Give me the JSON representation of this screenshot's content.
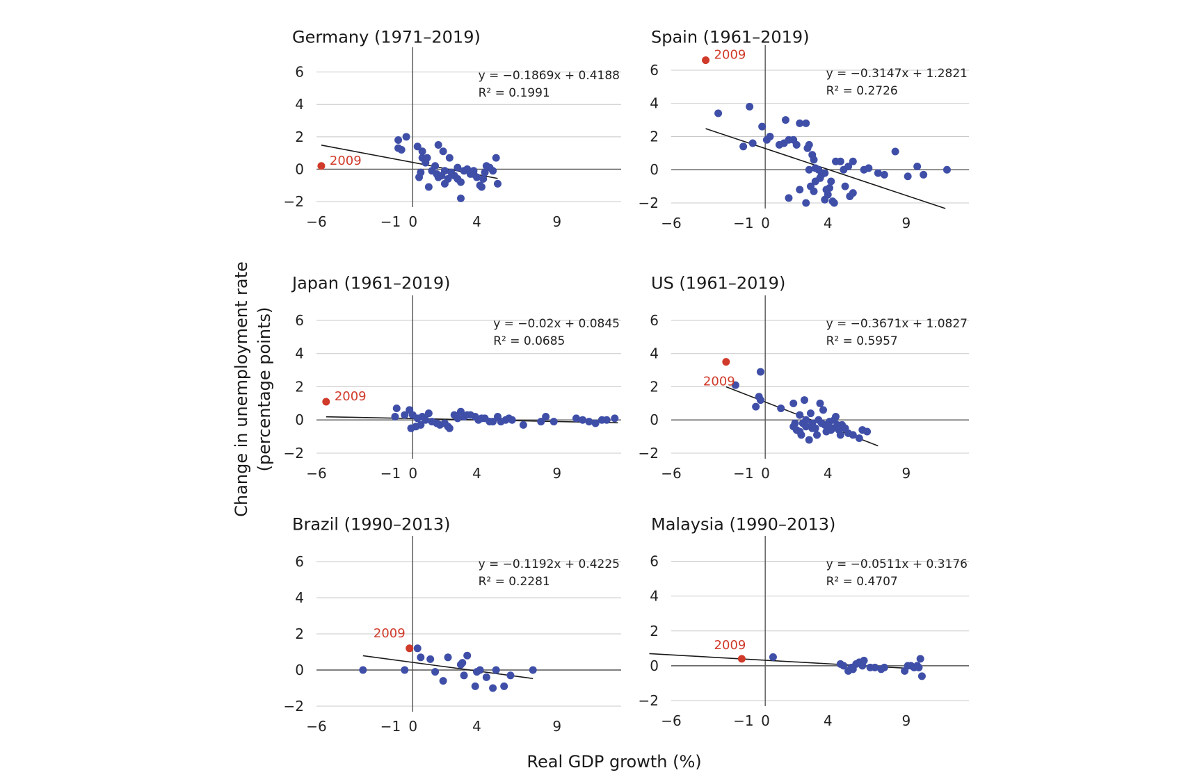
{
  "figure": {
    "ylabel_line1": "Change in unemployment rate",
    "ylabel_line2": "(percentage points)",
    "xlabel": "Real GDP growth (%)"
  },
  "colors": {
    "points": "#3f4fa8",
    "highlight": "#d03a2a",
    "grid": "#c8c8c8",
    "axis": "#555555",
    "fit": "#1a1a1a"
  },
  "chart_data": [
    {
      "type": "scatter",
      "title": "Germany (1971–2019)",
      "xticks": [
        -6,
        -1,
        0,
        4,
        9
      ],
      "yticks": [
        -2,
        0,
        2,
        4,
        6
      ],
      "xlim": [
        -6,
        13
      ],
      "ylim": [
        -2,
        6.5
      ],
      "equation": "y = −0.1869x + 0.4188",
      "r2": "R² = 0.1991",
      "fit": {
        "slope": -0.1869,
        "intercept": 0.4188,
        "x_range": [
          -5.7,
          5.3
        ]
      },
      "highlight": {
        "label": "2009",
        "x": -5.7,
        "y": 0.2
      },
      "points": [
        [
          -0.9,
          1.8
        ],
        [
          -0.4,
          2.0
        ],
        [
          -0.9,
          1.3
        ],
        [
          -0.7,
          1.2
        ],
        [
          0.3,
          1.4
        ],
        [
          0.6,
          1.1
        ],
        [
          1.6,
          1.5
        ],
        [
          1.9,
          1.1
        ],
        [
          2.3,
          0.7
        ],
        [
          0.6,
          0.7
        ],
        [
          0.9,
          0.7
        ],
        [
          0.5,
          -0.2
        ],
        [
          0.4,
          -0.5
        ],
        [
          1.2,
          -0.1
        ],
        [
          1.5,
          -0.3
        ],
        [
          1.8,
          -0.4
        ],
        [
          2.0,
          -0.1
        ],
        [
          2.2,
          -0.6
        ],
        [
          2.4,
          -0.2
        ],
        [
          2.6,
          -0.4
        ],
        [
          2.8,
          -0.6
        ],
        [
          3.0,
          -0.8
        ],
        [
          3.2,
          -0.1
        ],
        [
          3.4,
          0.0
        ],
        [
          3.6,
          -0.3
        ],
        [
          3.8,
          -0.1
        ],
        [
          4.0,
          -0.5
        ],
        [
          4.2,
          -1.0
        ],
        [
          4.4,
          -0.6
        ],
        [
          4.6,
          0.2
        ],
        [
          4.8,
          0.1
        ],
        [
          5.0,
          -0.1
        ],
        [
          5.2,
          0.7
        ],
        [
          5.3,
          -0.9
        ],
        [
          1.0,
          -1.1
        ],
        [
          3.0,
          -1.8
        ],
        [
          2.0,
          -0.9
        ],
        [
          3.8,
          -0.3
        ],
        [
          4.5,
          -0.2
        ],
        [
          1.4,
          0.2
        ],
        [
          0.8,
          0.4
        ],
        [
          2.8,
          0.1
        ],
        [
          4.3,
          -1.1
        ],
        [
          1.6,
          -0.5
        ]
      ]
    },
    {
      "type": "scatter",
      "title": "Spain (1961–2019)",
      "xticks": [
        -6,
        -1,
        0,
        4,
        9
      ],
      "yticks": [
        -2,
        0,
        2,
        4,
        6
      ],
      "xlim": [
        -6,
        13
      ],
      "ylim": [
        -2,
        6.5
      ],
      "equation": "y = −0.3147x + 1.2821",
      "r2": "R² = 0.2726",
      "fit": {
        "slope": -0.3147,
        "intercept": 1.2821,
        "x_range": [
          -3.8,
          11.5
        ]
      },
      "highlight": {
        "label": "2009",
        "x": -3.8,
        "y": 6.6
      },
      "points": [
        [
          -3.0,
          3.4
        ],
        [
          -1.0,
          3.8
        ],
        [
          -1.4,
          1.4
        ],
        [
          -0.8,
          1.6
        ],
        [
          -0.2,
          2.6
        ],
        [
          0.1,
          1.8
        ],
        [
          0.3,
          2.0
        ],
        [
          0.9,
          1.5
        ],
        [
          1.2,
          1.6
        ],
        [
          1.3,
          3.0
        ],
        [
          1.5,
          1.8
        ],
        [
          1.8,
          1.8
        ],
        [
          2.0,
          1.5
        ],
        [
          2.2,
          2.8
        ],
        [
          2.6,
          2.8
        ],
        [
          2.7,
          1.3
        ],
        [
          2.8,
          1.5
        ],
        [
          3.0,
          0.9
        ],
        [
          3.1,
          0.6
        ],
        [
          2.8,
          0.0
        ],
        [
          3.2,
          0.1
        ],
        [
          3.4,
          0.0
        ],
        [
          3.6,
          -0.3
        ],
        [
          3.5,
          -0.5
        ],
        [
          3.8,
          -0.2
        ],
        [
          4.2,
          -0.7
        ],
        [
          4.5,
          0.5
        ],
        [
          4.8,
          0.5
        ],
        [
          5.0,
          0.0
        ],
        [
          5.3,
          0.2
        ],
        [
          5.6,
          0.5
        ],
        [
          6.3,
          0.0
        ],
        [
          6.6,
          0.1
        ],
        [
          7.2,
          -0.2
        ],
        [
          7.6,
          -0.3
        ],
        [
          8.3,
          1.1
        ],
        [
          9.1,
          -0.4
        ],
        [
          9.7,
          0.2
        ],
        [
          10.1,
          -0.3
        ],
        [
          11.6,
          0.0
        ],
        [
          1.5,
          -1.7
        ],
        [
          2.2,
          -1.2
        ],
        [
          2.6,
          -2.0
        ],
        [
          2.9,
          -1.0
        ],
        [
          3.1,
          -1.3
        ],
        [
          3.5,
          -0.5
        ],
        [
          3.9,
          -1.2
        ],
        [
          4.0,
          -1.5
        ],
        [
          4.3,
          -1.9
        ],
        [
          3.8,
          -1.8
        ],
        [
          4.4,
          -2.0
        ],
        [
          5.1,
          -1.0
        ],
        [
          5.4,
          -1.6
        ],
        [
          5.6,
          -1.4
        ],
        [
          4.1,
          -1.1
        ],
        [
          3.2,
          -0.7
        ]
      ]
    },
    {
      "type": "scatter",
      "title": "Japan (1961–2019)",
      "xticks": [
        -6,
        -1,
        0,
        4,
        9
      ],
      "yticks": [
        -2,
        0,
        2,
        4,
        6
      ],
      "xlim": [
        -6,
        13
      ],
      "ylim": [
        -2,
        6.5
      ],
      "equation": "y = −0.02x + 0.0845",
      "r2": "R² = 0.0685",
      "fit": {
        "slope": -0.02,
        "intercept": 0.0845,
        "x_range": [
          -5.4,
          12.8
        ]
      },
      "highlight": {
        "label": "2009",
        "x": -5.4,
        "y": 1.1
      },
      "points": [
        [
          -1.0,
          0.7
        ],
        [
          -1.1,
          0.2
        ],
        [
          -0.5,
          0.3
        ],
        [
          -0.2,
          0.6
        ],
        [
          0.0,
          0.3
        ],
        [
          0.3,
          0.1
        ],
        [
          0.5,
          -0.3
        ],
        [
          0.6,
          0.2
        ],
        [
          0.8,
          0.0
        ],
        [
          1.0,
          0.4
        ],
        [
          0.2,
          -0.4
        ],
        [
          -0.1,
          -0.5
        ],
        [
          1.2,
          -0.1
        ],
        [
          1.5,
          -0.2
        ],
        [
          1.7,
          -0.3
        ],
        [
          2.0,
          -0.2
        ],
        [
          2.2,
          -0.4
        ],
        [
          2.3,
          -0.5
        ],
        [
          2.6,
          0.3
        ],
        [
          2.8,
          0.1
        ],
        [
          3.0,
          0.5
        ],
        [
          3.2,
          0.2
        ],
        [
          3.4,
          0.3
        ],
        [
          3.6,
          0.3
        ],
        [
          3.9,
          0.2
        ],
        [
          4.1,
          0.0
        ],
        [
          4.3,
          0.1
        ],
        [
          4.5,
          0.1
        ],
        [
          4.8,
          -0.1
        ],
        [
          5.0,
          -0.1
        ],
        [
          5.3,
          0.2
        ],
        [
          5.5,
          -0.1
        ],
        [
          5.8,
          0.0
        ],
        [
          6.0,
          0.1
        ],
        [
          6.9,
          -0.3
        ],
        [
          8.0,
          -0.1
        ],
        [
          8.3,
          0.2
        ],
        [
          8.8,
          -0.1
        ],
        [
          10.2,
          0.1
        ],
        [
          10.6,
          0.0
        ],
        [
          11.0,
          -0.1
        ],
        [
          11.4,
          -0.2
        ],
        [
          11.8,
          0.0
        ],
        [
          12.1,
          0.0
        ],
        [
          12.6,
          0.1
        ],
        [
          6.2,
          0.0
        ]
      ]
    },
    {
      "type": "scatter",
      "title": "US (1961–2019)",
      "xticks": [
        -6,
        -1,
        0,
        4,
        9
      ],
      "yticks": [
        -2,
        0,
        2,
        4,
        6
      ],
      "xlim": [
        -6,
        13
      ],
      "ylim": [
        -2,
        6.5
      ],
      "equation": "y = −0.3671x + 1.0827",
      "r2": "R² = 0.5957",
      "fit": {
        "slope": -0.3671,
        "intercept": 1.0827,
        "x_range": [
          -2.5,
          7.2
        ]
      },
      "highlight": {
        "label": "2009",
        "x": -2.5,
        "y": 3.5
      },
      "points": [
        [
          -1.9,
          2.1
        ],
        [
          -0.3,
          2.9
        ],
        [
          -0.4,
          1.4
        ],
        [
          -0.3,
          1.2
        ],
        [
          -0.6,
          0.8
        ],
        [
          1.0,
          0.7
        ],
        [
          1.8,
          1.0
        ],
        [
          2.2,
          0.3
        ],
        [
          2.5,
          1.2
        ],
        [
          1.8,
          -0.4
        ],
        [
          2.0,
          -0.6
        ],
        [
          2.3,
          -0.9
        ],
        [
          2.4,
          -0.2
        ],
        [
          2.6,
          0.0
        ],
        [
          2.8,
          -1.2
        ],
        [
          2.9,
          0.4
        ],
        [
          3.0,
          -0.2
        ],
        [
          3.2,
          -0.5
        ],
        [
          3.3,
          -0.9
        ],
        [
          3.4,
          0.0
        ],
        [
          3.5,
          1.0
        ],
        [
          3.7,
          0.6
        ],
        [
          3.8,
          -0.3
        ],
        [
          3.9,
          -0.7
        ],
        [
          4.0,
          -0.4
        ],
        [
          4.1,
          -0.1
        ],
        [
          4.2,
          -0.6
        ],
        [
          4.3,
          -0.5
        ],
        [
          4.4,
          0.0
        ],
        [
          4.5,
          0.2
        ],
        [
          4.6,
          -0.3
        ],
        [
          4.7,
          -0.6
        ],
        [
          4.9,
          -0.3
        ],
        [
          5.1,
          -0.5
        ],
        [
          5.3,
          -0.8
        ],
        [
          5.6,
          -0.9
        ],
        [
          6.0,
          -1.1
        ],
        [
          6.2,
          -0.6
        ],
        [
          6.5,
          -0.7
        ],
        [
          3.0,
          -0.5
        ],
        [
          2.6,
          -0.4
        ],
        [
          3.6,
          -0.2
        ],
        [
          4.8,
          -0.9
        ],
        [
          2.2,
          -0.7
        ],
        [
          1.9,
          -0.2
        ]
      ]
    },
    {
      "type": "scatter",
      "title": "Brazil (1990–2013)",
      "xticks": [
        -6,
        -1,
        0,
        4,
        9
      ],
      "yticks": [
        -2,
        0,
        2,
        4,
        6
      ],
      "xlim": [
        -6,
        13
      ],
      "ylim": [
        -2,
        6.5
      ],
      "equation": "y = −0.1192x + 0.4225",
      "r2": "R² = 0.2281",
      "fit": {
        "slope": -0.1192,
        "intercept": 0.4225,
        "x_range": [
          -3.1,
          7.5
        ]
      },
      "highlight": {
        "label": "2009",
        "x": -0.2,
        "y": 1.2
      },
      "points": [
        [
          -3.1,
          0.0
        ],
        [
          -0.5,
          0.0
        ],
        [
          0.3,
          1.2
        ],
        [
          0.5,
          0.7
        ],
        [
          1.1,
          0.6
        ],
        [
          1.4,
          -0.1
        ],
        [
          1.9,
          -0.6
        ],
        [
          2.2,
          0.7
        ],
        [
          3.0,
          0.3
        ],
        [
          3.1,
          0.4
        ],
        [
          3.2,
          -0.3
        ],
        [
          3.4,
          0.8
        ],
        [
          3.9,
          -0.9
        ],
        [
          4.0,
          -0.1
        ],
        [
          4.2,
          0.0
        ],
        [
          4.6,
          -0.4
        ],
        [
          5.0,
          -1.0
        ],
        [
          5.2,
          0.0
        ],
        [
          5.7,
          -0.9
        ],
        [
          6.1,
          -0.3
        ],
        [
          7.5,
          0.0
        ]
      ]
    },
    {
      "type": "scatter",
      "title": "Malaysia (1990–2013)",
      "xticks": [
        -6,
        -1,
        0,
        4,
        9
      ],
      "yticks": [
        -2,
        0,
        2,
        4,
        6
      ],
      "xlim": [
        -6,
        13
      ],
      "ylim": [
        -2,
        6.5
      ],
      "equation": "y = −0.0511x + 0.3176",
      "r2": "R² = 0.4707",
      "fit": {
        "slope": -0.0511,
        "intercept": 0.3176,
        "x_range": [
          -7.4,
          10.0
        ]
      },
      "highlight": {
        "label": "2009",
        "x": -1.5,
        "y": 0.4
      },
      "points": [
        [
          0.5,
          0.5
        ],
        [
          4.8,
          0.1
        ],
        [
          5.0,
          0.0
        ],
        [
          5.3,
          -0.3
        ],
        [
          5.5,
          -0.1
        ],
        [
          5.6,
          -0.2
        ],
        [
          5.8,
          0.1
        ],
        [
          6.0,
          0.2
        ],
        [
          6.2,
          0.0
        ],
        [
          6.3,
          0.3
        ],
        [
          6.7,
          -0.1
        ],
        [
          7.0,
          -0.1
        ],
        [
          7.4,
          -0.2
        ],
        [
          7.6,
          -0.1
        ],
        [
          8.9,
          -0.3
        ],
        [
          9.1,
          0.0
        ],
        [
          9.3,
          0.0
        ],
        [
          9.5,
          -0.1
        ],
        [
          9.7,
          0.0
        ],
        [
          9.9,
          0.4
        ],
        [
          10.0,
          -0.6
        ],
        [
          9.8,
          -0.1
        ]
      ]
    }
  ]
}
